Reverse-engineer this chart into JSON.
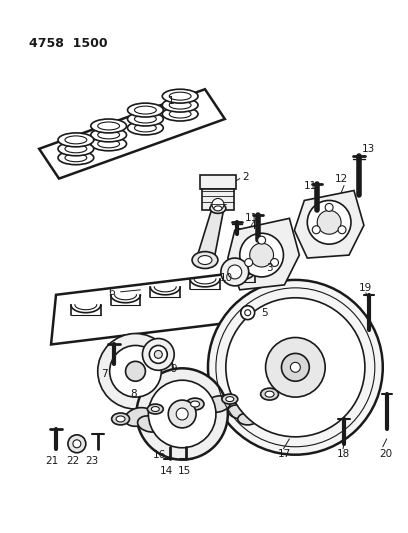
{
  "title": "4758  1500",
  "bg_color": "#ffffff",
  "line_color": "#1a1a1a",
  "fig_width": 4.08,
  "fig_height": 5.33,
  "dpi": 100
}
